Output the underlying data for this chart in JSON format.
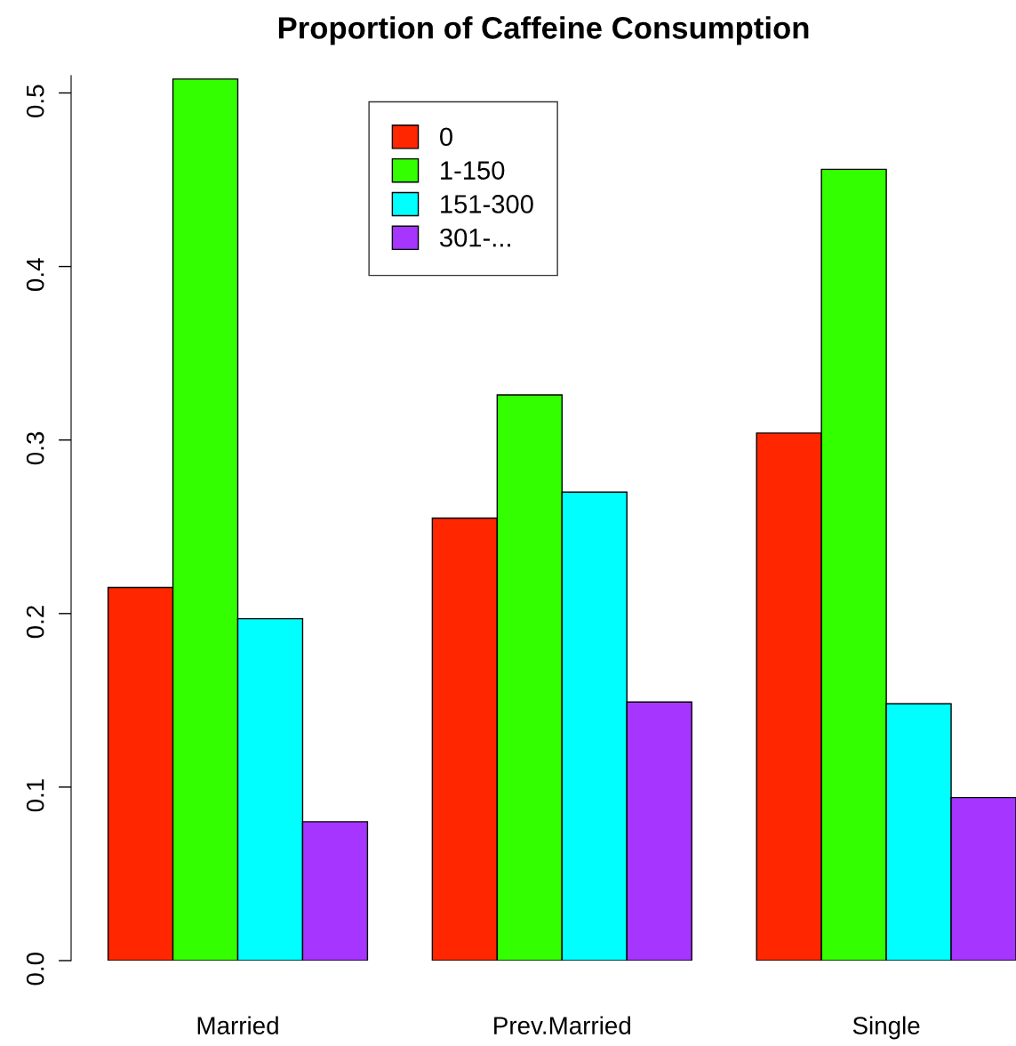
{
  "chart_data": {
    "type": "bar",
    "title": "Proportion of Caffeine Consumption",
    "categories": [
      "Married",
      "Prev.Married",
      "Single"
    ],
    "series": [
      {
        "name": "0",
        "color": "#ff2600",
        "values": [
          0.215,
          0.255,
          0.304
        ]
      },
      {
        "name": "1-150",
        "color": "#33ff00",
        "values": [
          0.508,
          0.326,
          0.456
        ]
      },
      {
        "name": "151-300",
        "color": "#00ffff",
        "values": [
          0.197,
          0.27,
          0.148
        ]
      },
      {
        "name": "301-...",
        "color": "#a635ff",
        "values": [
          0.08,
          0.149,
          0.094
        ]
      }
    ],
    "ylim": [
      0,
      0.51
    ],
    "yticks": [
      {
        "value": 0,
        "label": "0.0"
      },
      0.1,
      0.2,
      0.3,
      0.4,
      0.5
    ],
    "grid": false,
    "legend": "top"
  }
}
